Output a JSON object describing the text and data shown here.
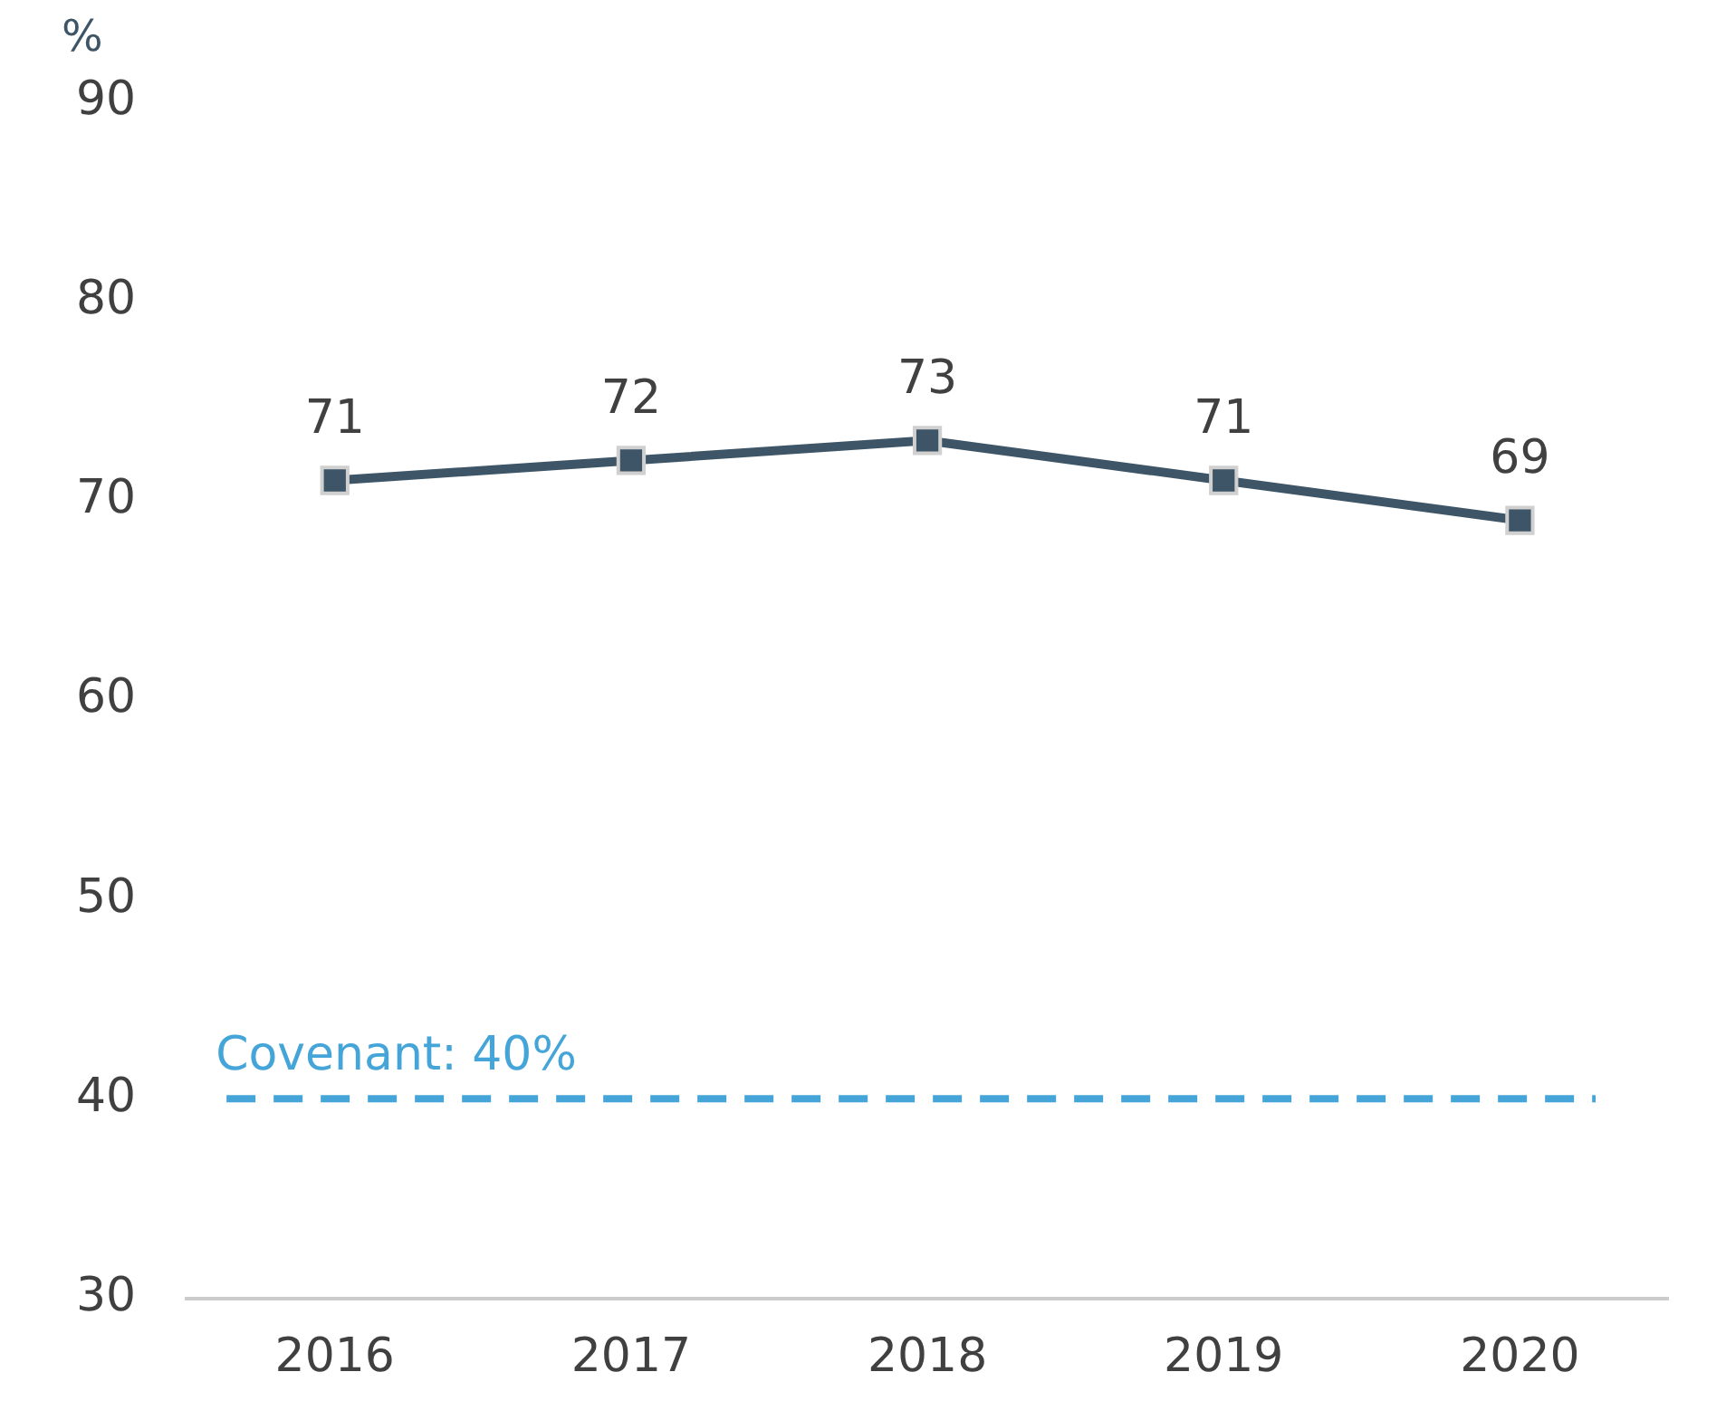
{
  "chart_data": {
    "type": "line",
    "ylabel": "%",
    "categories": [
      "2016",
      "2017",
      "2018",
      "2019",
      "2020"
    ],
    "series": [
      {
        "color": "#3d5566",
        "values": [
          71,
          72,
          73,
          71,
          69
        ]
      }
    ],
    "ylim": [
      30,
      90
    ],
    "yticks": [
      30,
      40,
      50,
      60,
      70,
      80,
      90
    ],
    "grid": false,
    "legend": false,
    "marker": "square",
    "line_style": "solid",
    "data_labels": true,
    "ref_lines": [
      {
        "axis": "y",
        "value": 40,
        "label": "Covenant: 40%",
        "color": "#45a5d8",
        "line_style": "dashed"
      }
    ]
  }
}
